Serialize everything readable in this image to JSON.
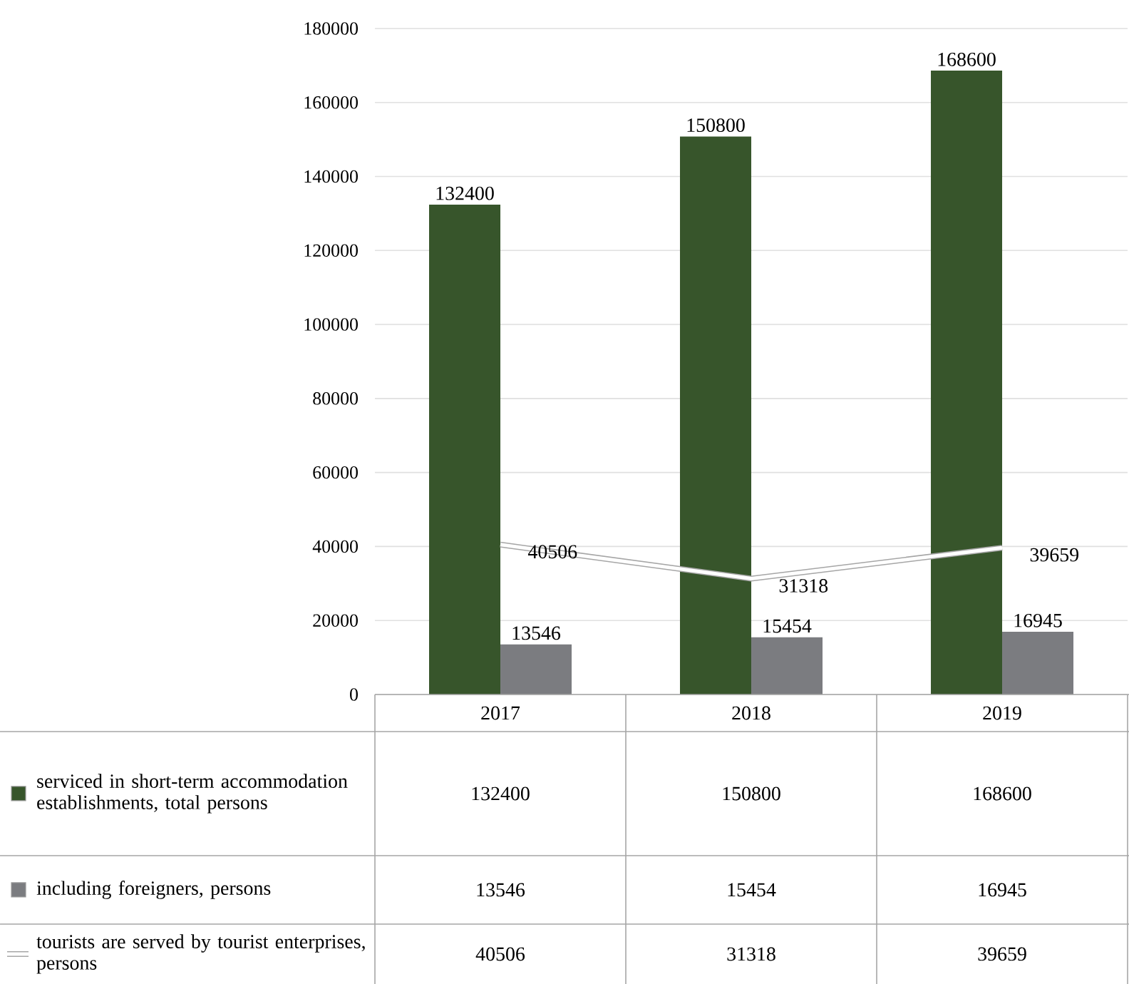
{
  "chart_data": {
    "type": "bar",
    "categories": [
      "2017",
      "2018",
      "2019"
    ],
    "series": [
      {
        "name": "serviced in short-term accommodation establishments, total persons",
        "color": "#37552b",
        "values": [
          132400,
          150800,
          168600
        ],
        "value_labels": [
          "132400",
          "150800",
          "168600"
        ]
      },
      {
        "name": "including foreigners, persons",
        "color": "#7b7c80",
        "values": [
          13546,
          15454,
          16945
        ],
        "value_labels": [
          "13546",
          "15454",
          "16945"
        ]
      },
      {
        "name": "tourists are served by tourist enterprises, persons",
        "type": "line",
        "color": "#ffffff",
        "values": [
          40506,
          31318,
          39659
        ],
        "value_labels": [
          "40506",
          "31318",
          "39659"
        ]
      }
    ],
    "ylim": [
      0,
      180000
    ],
    "yticks": [
      0,
      20000,
      40000,
      60000,
      80000,
      100000,
      120000,
      140000,
      160000,
      180000
    ],
    "grid": "y",
    "data_labels": true,
    "legend": "bottom left"
  }
}
